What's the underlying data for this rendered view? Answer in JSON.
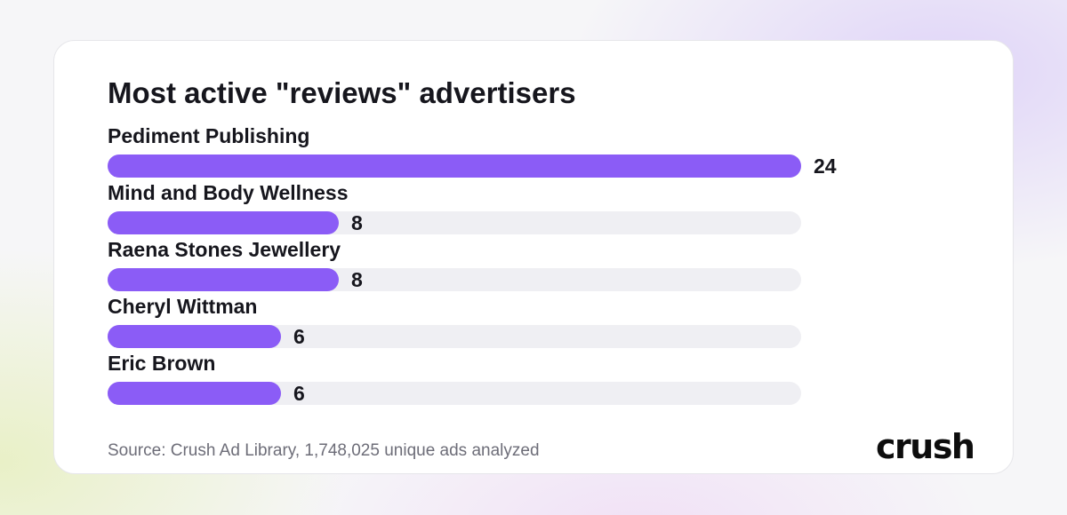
{
  "chart_data": {
    "type": "bar",
    "orientation": "horizontal",
    "title": "Most active \"reviews\" advertisers",
    "categories": [
      "Pediment Publishing",
      "Mind and Body Wellness",
      "Raena Stones Jewellery",
      "Cheryl Wittman",
      "Eric Brown"
    ],
    "values": [
      24,
      8,
      8,
      6,
      6
    ],
    "value_labels": [
      "24",
      "8",
      "8",
      "6",
      "6"
    ],
    "xlim": [
      0,
      24
    ],
    "grid": false,
    "bar_color": "#8b5cf6",
    "track_color": "#efeff3"
  },
  "footer": {
    "source": "Source: Crush Ad Library, 1,748,025 unique ads analyzed",
    "logo_text": "crush"
  }
}
